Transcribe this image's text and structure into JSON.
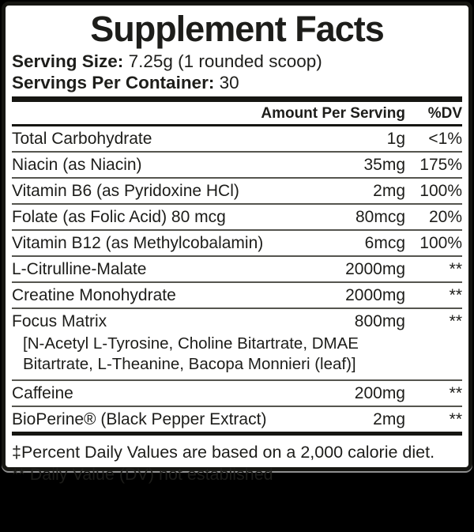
{
  "title": "Supplement Facts",
  "serving_size": {
    "label": "Serving Size:",
    "value": "7.25g (1 rounded scoop)"
  },
  "servings_per_container": {
    "label": "Servings Per Container:",
    "value": "30"
  },
  "table": {
    "amount_header": "Amount Per Serving",
    "dv_header": "%DV",
    "rows": [
      {
        "name": "Total Carbohydrate",
        "amount": "1g",
        "dv": "<1%"
      },
      {
        "name": "Niacin (as Niacin)",
        "amount": "35mg",
        "dv": "175%"
      },
      {
        "name": "Vitamin B6 (as Pyridoxine HCl)",
        "amount": "2mg",
        "dv": "100%"
      },
      {
        "name": "Folate (as Folic Acid) 80 mcg",
        "amount": "80mcg",
        "dv": "20%"
      },
      {
        "name": "Vitamin B12 (as Methylcobalamin)",
        "amount": "6mcg",
        "dv": "100%"
      },
      {
        "name": "L-Citrulline-Malate",
        "amount": "2000mg",
        "dv": "**"
      },
      {
        "name": "Creatine Monohydrate",
        "amount": "2000mg",
        "dv": "**"
      },
      {
        "name": "Focus Matrix",
        "amount": "800mg",
        "dv": "**",
        "sub_ingredients": "[N-Acetyl L-Tyrosine, Choline Bitartrate, DMAE Bitartrate, L-Theanine, Bacopa Monnieri (leaf)]"
      },
      {
        "name": "Caffeine",
        "amount": "200mg",
        "dv": "**"
      },
      {
        "name": "BioPerine® (Black Pepper Extract)",
        "amount": "2mg",
        "dv": "**"
      }
    ]
  },
  "footnotes": [
    "‡Percent Daily Values are based on a 2,000 calorie diet.",
    "** Daily Value (DV) not established"
  ],
  "colors": {
    "text": "#1d1d1a",
    "panel_bg": "#ffffff",
    "background": "#000000",
    "separator": "#55554f"
  }
}
